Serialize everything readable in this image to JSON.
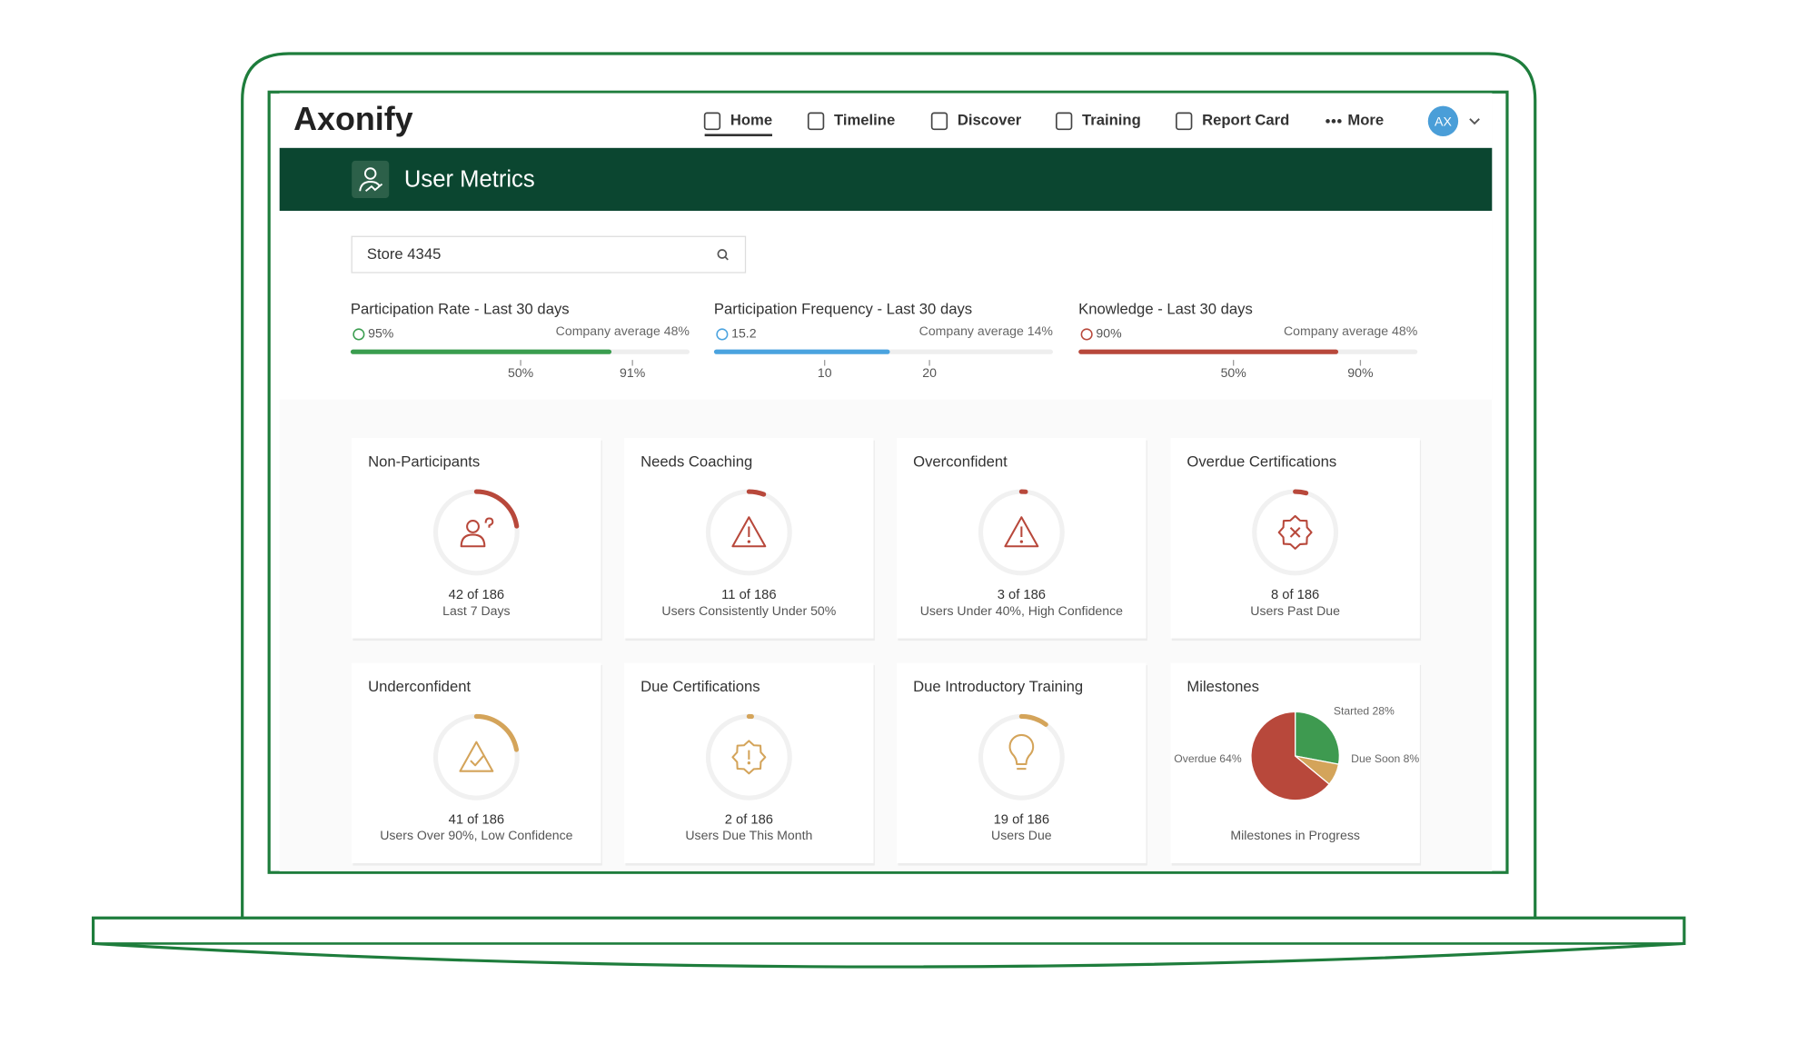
{
  "nav": {
    "logo": "Axonify",
    "items": [
      "Home",
      "Timeline",
      "Discover",
      "Training",
      "Report Card",
      "More"
    ],
    "avatar": "AX"
  },
  "header": {
    "title": "User Metrics"
  },
  "search": {
    "value": "Store 4345"
  },
  "metrics": [
    {
      "title": "Participation Rate - Last 30 days",
      "value": "95%",
      "average": "Company average 48%",
      "ticks": [
        "50%",
        "91%"
      ],
      "color": "#3a9d4f"
    },
    {
      "title": "Participation Frequency - Last 30 days",
      "value": "15.2",
      "average": "Company average 14%",
      "ticks": [
        "10",
        "20"
      ],
      "color": "#4aa3df"
    },
    {
      "title": "Knowledge - Last 30 days",
      "value": "90%",
      "average": "Company average 48%",
      "ticks": [
        "50%",
        "90%"
      ],
      "color": "#b8483b"
    }
  ],
  "cards": [
    {
      "title": "Non-Participants",
      "stat": {
        "count": 42,
        "total": 186,
        "label": "42 of 186"
      },
      "caption": "Last 7 Days",
      "color": "#b8483b"
    },
    {
      "title": "Needs Coaching",
      "stat": {
        "count": 11,
        "total": 186,
        "label": "11 of 186"
      },
      "caption": "Users Consistently Under 50%",
      "color": "#b8483b"
    },
    {
      "title": "Overconfident",
      "stat": {
        "count": 3,
        "total": 186,
        "label": "3 of 186"
      },
      "caption": "Users Under 40%, High Confidence",
      "color": "#b8483b"
    },
    {
      "title": "Overdue Certifications",
      "stat": {
        "count": 8,
        "total": 186,
        "label": "8 of 186"
      },
      "caption": "Users Past Due",
      "color": "#b8483b"
    },
    {
      "title": "Underconfident",
      "stat": {
        "count": 41,
        "total": 186,
        "label": "41 of 186"
      },
      "caption": "Users Over 90%, Low Confidence",
      "color": "#d4a45a"
    },
    {
      "title": "Due Certifications",
      "stat": {
        "count": 2,
        "total": 186,
        "label": "2 of 186"
      },
      "caption": "Users Due This Month",
      "color": "#d4a45a"
    },
    {
      "title": "Due Introductory Training",
      "stat": {
        "count": 19,
        "total": 186,
        "label": "19 of 186"
      },
      "caption": "Users Due",
      "color": "#d4a45a"
    }
  ],
  "milestones": {
    "title": "Milestones",
    "caption": "Milestones in Progress",
    "slices": [
      {
        "label": "Started 28%",
        "value": 28,
        "color": "#3e9a50"
      },
      {
        "label": "Due Soon 8%",
        "value": 8,
        "color": "#d4a45a"
      },
      {
        "label": "Overdue 64%",
        "value": 64,
        "color": "#b8483b"
      }
    ]
  }
}
